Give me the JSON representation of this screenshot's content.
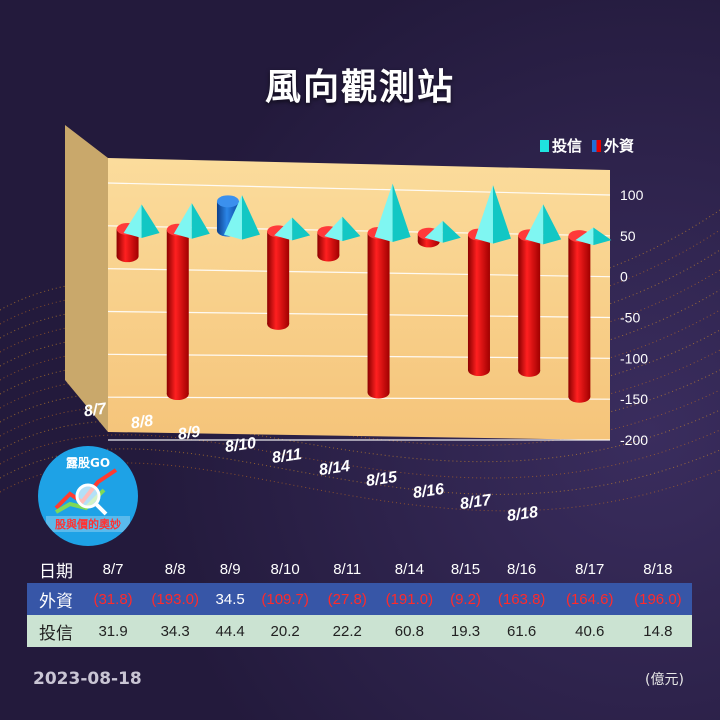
{
  "title": "風向觀測站",
  "legend": {
    "trust": "投信",
    "foreign": "外資"
  },
  "colors": {
    "foreign": "#e60000",
    "foreign_positive": "#1f6fd6",
    "trust": "#1fe3e0",
    "wall": "#f7cf8a"
  },
  "chart_data": {
    "type": "bar",
    "categories": [
      "8/7",
      "8/8",
      "8/9",
      "8/10",
      "8/11",
      "8/14",
      "8/15",
      "8/16",
      "8/17",
      "8/18"
    ],
    "series": [
      {
        "name": "外資",
        "values": [
          -31.8,
          -193.0,
          34.5,
          -109.7,
          -27.8,
          -191.0,
          -9.2,
          -163.8,
          -164.6,
          -196.0
        ]
      },
      {
        "name": "投信",
        "values": [
          31.9,
          34.3,
          44.4,
          20.2,
          22.2,
          60.8,
          19.3,
          61.6,
          40.6,
          14.8
        ]
      }
    ],
    "yticks": [
      "100",
      "50",
      "0",
      "-50",
      "-100",
      "-150",
      "-200"
    ],
    "ylim": [
      -200,
      100
    ],
    "legend_position": "top-right"
  },
  "table": {
    "header_label": "日期",
    "foreign_label": "外資",
    "trust_label": "投信",
    "dates": [
      "8/7",
      "8/8",
      "8/9",
      "8/10",
      "8/11",
      "8/14",
      "8/15",
      "8/16",
      "8/17",
      "8/18"
    ],
    "foreign": [
      "(31.8)",
      "(193.0)",
      "34.5",
      "(109.7)",
      "(27.8)",
      "(191.0)",
      "(9.2)",
      "(163.8)",
      "(164.6)",
      "(196.0)"
    ],
    "trust": [
      "31.9",
      "34.3",
      "44.4",
      "20.2",
      "22.2",
      "60.8",
      "19.3",
      "61.6",
      "40.6",
      "14.8"
    ]
  },
  "logo": {
    "top_text": "露股GO",
    "bottom_text": "股與價的奧妙"
  },
  "footer": {
    "date": "2023-08-18",
    "unit": "(億元)"
  }
}
